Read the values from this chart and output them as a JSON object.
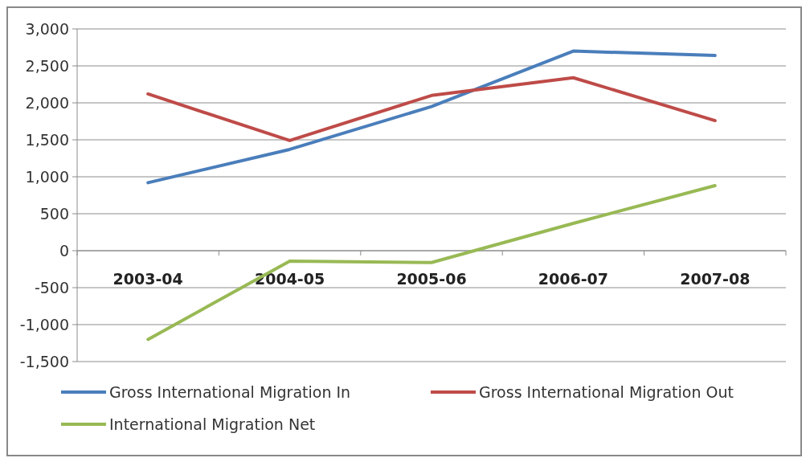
{
  "chart_data": {
    "type": "line",
    "categories": [
      "2003-04",
      "2004-05",
      "2005-06",
      "2006-07",
      "2007-08"
    ],
    "series": [
      {
        "name": "Gross International Migration In",
        "color": "#4a7ebb",
        "values": [
          920,
          1370,
          1950,
          2700,
          2640
        ]
      },
      {
        "name": "Gross International Migration Out",
        "color": "#be4b48",
        "values": [
          2120,
          1490,
          2100,
          2340,
          1760
        ]
      },
      {
        "name": "International Migration Net",
        "color": "#98b954",
        "values": [
          -1200,
          -140,
          -160,
          370,
          880
        ]
      }
    ],
    "ylim": [
      -1500,
      3000
    ],
    "yticks": [
      {
        "value": -1500,
        "label": "-1,500"
      },
      {
        "value": -1000,
        "label": "-1,000"
      },
      {
        "value": -500,
        "label": "-500"
      },
      0,
      500,
      {
        "value": 1000,
        "label": "1,000"
      },
      {
        "value": 1500,
        "label": "1,500"
      },
      {
        "value": 2000,
        "label": "2,000"
      },
      {
        "value": 2500,
        "label": "2,500"
      },
      {
        "value": 3000,
        "label": "3,000"
      }
    ],
    "grid": "y",
    "legend": "bottom",
    "marker": "none",
    "line_style": "solid"
  }
}
